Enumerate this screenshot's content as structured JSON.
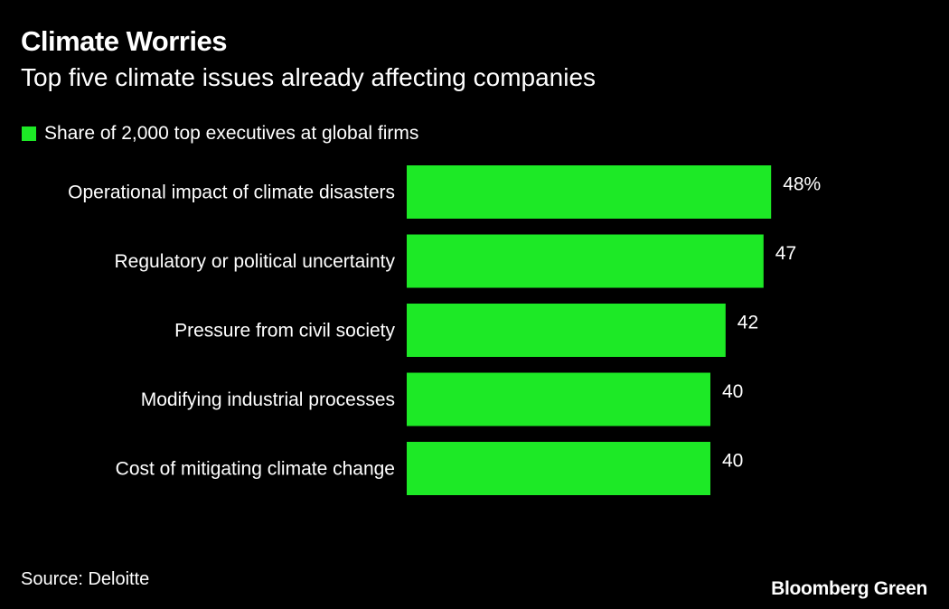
{
  "title": "Climate Worries",
  "subtitle": "Top five climate issues already affecting companies",
  "source": "Source: Deloitte",
  "brand": "Bloomberg Green",
  "colors": {
    "bar": "#1de926",
    "background": "#000000",
    "text": "#ffffff"
  },
  "chart_data": {
    "type": "bar",
    "orientation": "horizontal",
    "categories": [
      "Operational impact of climate disasters",
      "Regulatory or political uncertainty",
      "Pressure from civil society",
      "Modifying industrial processes",
      "Cost of mitigating climate change"
    ],
    "series": [
      {
        "name": "Share of 2,000 top executives at global firms",
        "values": [
          48,
          47,
          42,
          40,
          40
        ]
      }
    ],
    "data_labels": [
      "48%",
      "47",
      "42",
      "40",
      "40"
    ],
    "legend": "top-left",
    "grid": false,
    "xlim": [
      0,
      48
    ]
  }
}
